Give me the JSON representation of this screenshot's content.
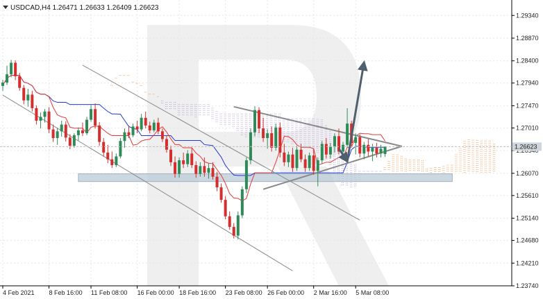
{
  "chart_data": {
    "type": "candlestick",
    "symbol": "USDCAD",
    "timeframe": "H4",
    "ohlc_header": {
      "open": "1.26471",
      "high": "1.26633",
      "low": "1.26409",
      "close": "1.26623"
    },
    "title": "USDCAD,H4  1.26471 1.26633 1.26409 1.26623",
    "current_price": 1.26623,
    "current_price_label": "1.26623",
    "ylim": [
      1.2374,
      1.2966
    ],
    "y_ticks": [
      "1.29340",
      "1.28870",
      "1.28400",
      "1.27940",
      "1.27470",
      "1.27010",
      "1.26540",
      "1.26070",
      "1.25610",
      "1.25140",
      "1.24680",
      "1.24210",
      "1.23740"
    ],
    "x_ticks": [
      "4 Feb 2021",
      "8 Feb 16:00",
      "11 Feb 08:00",
      "16 Feb 00:00",
      "18 Feb 16:00",
      "23 Feb 08:00",
      "26 Feb 00:00",
      "2 Mar 16:00",
      "5 Mar 08:00"
    ],
    "n_candles": 92,
    "candles": [
      [
        1.2788,
        1.2801,
        1.2778,
        1.2795
      ],
      [
        1.2795,
        1.283,
        1.279,
        1.2812
      ],
      [
        1.2812,
        1.2842,
        1.2806,
        1.2836
      ],
      [
        1.2836,
        1.2841,
        1.28,
        1.2808
      ],
      [
        1.2808,
        1.2815,
        1.2778,
        1.2784
      ],
      [
        1.2784,
        1.279,
        1.275,
        1.2758
      ],
      [
        1.2758,
        1.2782,
        1.2745,
        1.277
      ],
      [
        1.277,
        1.2778,
        1.2735,
        1.2742
      ],
      [
        1.2742,
        1.2748,
        1.2708,
        1.2716
      ],
      [
        1.2716,
        1.2733,
        1.27,
        1.2724
      ],
      [
        1.2724,
        1.274,
        1.2712,
        1.2735
      ],
      [
        1.2735,
        1.2744,
        1.269,
        1.2698
      ],
      [
        1.2698,
        1.2708,
        1.2672,
        1.268
      ],
      [
        1.268,
        1.2701,
        1.2666,
        1.2694
      ],
      [
        1.2694,
        1.2716,
        1.2683,
        1.2708
      ],
      [
        1.2708,
        1.2715,
        1.2673,
        1.2681
      ],
      [
        1.2681,
        1.2688,
        1.2657,
        1.2664
      ],
      [
        1.2664,
        1.269,
        1.266,
        1.2686
      ],
      [
        1.2686,
        1.2702,
        1.2675,
        1.2696
      ],
      [
        1.2696,
        1.2712,
        1.2684,
        1.269
      ],
      [
        1.269,
        1.2724,
        1.2686,
        1.2718
      ],
      [
        1.2718,
        1.2748,
        1.2714,
        1.274
      ],
      [
        1.274,
        1.2752,
        1.27,
        1.2706
      ],
      [
        1.2706,
        1.2713,
        1.2664,
        1.2672
      ],
      [
        1.2672,
        1.268,
        1.2642,
        1.265
      ],
      [
        1.265,
        1.2666,
        1.2628,
        1.2636
      ],
      [
        1.2636,
        1.2652,
        1.2618,
        1.2624
      ],
      [
        1.2624,
        1.2648,
        1.262,
        1.2642
      ],
      [
        1.2642,
        1.268,
        1.2638,
        1.2674
      ],
      [
        1.2674,
        1.27,
        1.266,
        1.2692
      ],
      [
        1.2692,
        1.2706,
        1.268,
        1.2686
      ],
      [
        1.2686,
        1.271,
        1.2682,
        1.2704
      ],
      [
        1.2704,
        1.2716,
        1.269,
        1.2698
      ],
      [
        1.2698,
        1.273,
        1.2694,
        1.2722
      ],
      [
        1.2722,
        1.2735,
        1.27,
        1.2706
      ],
      [
        1.2706,
        1.2714,
        1.269,
        1.2696
      ],
      [
        1.2696,
        1.2718,
        1.2692,
        1.2712
      ],
      [
        1.2712,
        1.2722,
        1.2688,
        1.2694
      ],
      [
        1.2694,
        1.27,
        1.2672,
        1.2678
      ],
      [
        1.2678,
        1.2686,
        1.265,
        1.2656
      ],
      [
        1.2656,
        1.2664,
        1.2622,
        1.263
      ],
      [
        1.263,
        1.2642,
        1.2598,
        1.2606
      ],
      [
        1.2606,
        1.264,
        1.2598,
        1.2634
      ],
      [
        1.2634,
        1.265,
        1.2618,
        1.2626
      ],
      [
        1.2626,
        1.2655,
        1.262,
        1.2648
      ],
      [
        1.2648,
        1.266,
        1.2618,
        1.2624
      ],
      [
        1.2624,
        1.2632,
        1.2598,
        1.2606
      ],
      [
        1.2606,
        1.263,
        1.26,
        1.2622
      ],
      [
        1.2622,
        1.264,
        1.26,
        1.2608
      ],
      [
        1.2608,
        1.2628,
        1.2596,
        1.2618
      ],
      [
        1.2618,
        1.263,
        1.2594,
        1.26
      ],
      [
        1.26,
        1.261,
        1.257,
        1.2578
      ],
      [
        1.2578,
        1.2586,
        1.2546,
        1.2552
      ],
      [
        1.2552,
        1.256,
        1.2512,
        1.2518
      ],
      [
        1.2518,
        1.2528,
        1.249,
        1.2496
      ],
      [
        1.2496,
        1.2504,
        1.2472,
        1.2478
      ],
      [
        1.2478,
        1.2528,
        1.247,
        1.252
      ],
      [
        1.252,
        1.258,
        1.2514,
        1.2574
      ],
      [
        1.2574,
        1.264,
        1.2566,
        1.2634
      ],
      [
        1.2634,
        1.27,
        1.2626,
        1.2692
      ],
      [
        1.2692,
        1.2746,
        1.2684,
        1.2738
      ],
      [
        1.2738,
        1.2744,
        1.269,
        1.27
      ],
      [
        1.27,
        1.2722,
        1.2672,
        1.268
      ],
      [
        1.268,
        1.2698,
        1.2658,
        1.269
      ],
      [
        1.269,
        1.2704,
        1.2652,
        1.266
      ],
      [
        1.266,
        1.271,
        1.2654,
        1.2702
      ],
      [
        1.2702,
        1.2712,
        1.264,
        1.265
      ],
      [
        1.265,
        1.2668,
        1.2622,
        1.263
      ],
      [
        1.263,
        1.2652,
        1.262,
        1.2646
      ],
      [
        1.2646,
        1.266,
        1.261,
        1.2618
      ],
      [
        1.2618,
        1.2664,
        1.2612,
        1.2656
      ],
      [
        1.2656,
        1.2668,
        1.263,
        1.2636
      ],
      [
        1.2636,
        1.2646,
        1.261,
        1.2618
      ],
      [
        1.2618,
        1.265,
        1.2612,
        1.2644
      ],
      [
        1.2644,
        1.2658,
        1.2604,
        1.2612
      ],
      [
        1.2612,
        1.264,
        1.258,
        1.2634
      ],
      [
        1.2634,
        1.2674,
        1.2626,
        1.2668
      ],
      [
        1.2668,
        1.268,
        1.2638,
        1.2646
      ],
      [
        1.2646,
        1.267,
        1.2638,
        1.2662
      ],
      [
        1.2662,
        1.269,
        1.265,
        1.2684
      ],
      [
        1.2684,
        1.27,
        1.2646,
        1.2652
      ],
      [
        1.2652,
        1.2672,
        1.264,
        1.2666
      ],
      [
        1.2666,
        1.2742,
        1.266,
        1.271
      ],
      [
        1.271,
        1.2716,
        1.2662,
        1.267
      ],
      [
        1.267,
        1.269,
        1.2646,
        1.2682
      ],
      [
        1.2682,
        1.2688,
        1.264,
        1.2648
      ],
      [
        1.2648,
        1.2672,
        1.2636,
        1.2666
      ],
      [
        1.2666,
        1.2678,
        1.2642,
        1.2652
      ],
      [
        1.2652,
        1.2668,
        1.2632,
        1.266
      ],
      [
        1.266,
        1.267,
        1.264,
        1.2648
      ],
      [
        1.2648,
        1.2666,
        1.264,
        1.2658
      ],
      [
        1.2647,
        1.2663,
        1.2641,
        1.2662
      ]
    ],
    "support_zone": {
      "low": 1.259,
      "high": 1.2606,
      "from_index": 18,
      "to_index": 107
    },
    "trendlines": [
      {
        "name": "channel-upper",
        "from": [
          19,
          1.2831
        ],
        "to": [
          85,
          1.251
        ]
      },
      {
        "name": "channel-lower",
        "from": [
          0,
          1.2769
        ],
        "to": [
          69,
          1.2405
        ]
      },
      {
        "name": "triangle-upper",
        "from": [
          55,
          1.2745
        ],
        "to": [
          95,
          1.2663
        ]
      },
      {
        "name": "triangle-lower",
        "from": [
          62,
          1.2574
        ],
        "to": [
          95,
          1.2663
        ]
      }
    ],
    "arrows": [
      {
        "name": "forecast-arrow-down",
        "from": [
          80,
          1.2658
        ],
        "to": [
          82,
          1.2632
        ]
      },
      {
        "name": "forecast-arrow-up",
        "from": [
          82,
          1.2632
        ],
        "to": [
          86,
          1.2837
        ]
      }
    ],
    "grid": true,
    "colors": {
      "bull": "#2e8b57",
      "bear": "#d32f2f",
      "tenkan": "#e53935",
      "kijun": "#1e3ad6",
      "cloud_a": "#f5a25d",
      "cloud_b": "#b9a6d9",
      "trend_line": "#8a8a8a",
      "forecast_arrow": "#4f5f6e",
      "support_zone": "#bccad6",
      "price_tag": "#cfd6dd",
      "watermark": "#eeeeee",
      "grid": "#e6e6e6",
      "axis": "#000000"
    }
  }
}
